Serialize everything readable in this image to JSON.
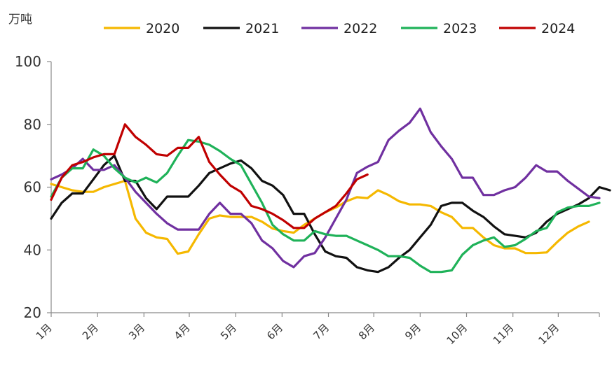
{
  "chart_data": {
    "type": "line",
    "unit_label": "万吨",
    "ylim": [
      20,
      100
    ],
    "yticks": [
      20,
      40,
      60,
      80,
      100
    ],
    "x_range": [
      0,
      52
    ],
    "month_ticks": [
      "1月",
      "2月",
      "3月",
      "4月",
      "5月",
      "6月",
      "7月",
      "8月",
      "9月",
      "10月",
      "11月",
      "12月"
    ],
    "month_tick_x": [
      0,
      4.4,
      8.8,
      13.1,
      17.5,
      21.9,
      26.3,
      30.6,
      35,
      39.4,
      43.8,
      48.1
    ],
    "legend_position": "top",
    "grid": false,
    "series": [
      {
        "name": "2020",
        "color": "#F5B800",
        "points": [
          [
            0,
            61
          ],
          [
            1,
            60
          ],
          [
            2,
            59
          ],
          [
            3,
            58.5
          ],
          [
            4,
            58.5
          ],
          [
            5,
            60
          ],
          [
            6,
            61
          ],
          [
            7,
            62
          ],
          [
            8,
            50
          ],
          [
            9,
            45.5
          ],
          [
            10,
            44
          ],
          [
            11,
            43.5
          ],
          [
            12,
            38.8
          ],
          [
            13,
            39.5
          ],
          [
            14,
            45
          ],
          [
            15,
            50
          ],
          [
            16,
            51
          ],
          [
            17,
            50.5
          ],
          [
            18,
            50.5
          ],
          [
            19,
            50.5
          ],
          [
            20,
            49
          ],
          [
            21,
            46.8
          ],
          [
            22,
            46
          ],
          [
            23,
            45.5
          ],
          [
            24,
            48
          ],
          [
            25,
            50
          ],
          [
            26,
            52
          ],
          [
            27,
            53.5
          ],
          [
            28,
            55.5
          ],
          [
            29,
            56.8
          ],
          [
            30,
            56.5
          ],
          [
            31,
            59
          ],
          [
            32,
            57.5
          ],
          [
            33,
            55.5
          ],
          [
            34,
            54.5
          ],
          [
            35,
            54.5
          ],
          [
            36,
            54
          ],
          [
            37,
            52
          ],
          [
            38,
            50.5
          ],
          [
            39,
            47
          ],
          [
            40,
            47
          ],
          [
            41,
            44
          ],
          [
            42,
            41.5
          ],
          [
            43,
            40.5
          ],
          [
            44,
            40.5
          ],
          [
            45,
            39
          ],
          [
            46,
            39
          ],
          [
            47,
            39.2
          ],
          [
            48,
            42.5
          ],
          [
            49,
            45.5
          ],
          [
            50,
            47.5
          ],
          [
            51,
            49
          ]
        ]
      },
      {
        "name": "2021",
        "color": "#111111",
        "points": [
          [
            0,
            50
          ],
          [
            1,
            55
          ],
          [
            2,
            58
          ],
          [
            3,
            58
          ],
          [
            4,
            62.5
          ],
          [
            5,
            67
          ],
          [
            6,
            70
          ],
          [
            7,
            62
          ],
          [
            8,
            62
          ],
          [
            9,
            56.5
          ],
          [
            10,
            53
          ],
          [
            11,
            57
          ],
          [
            12,
            57
          ],
          [
            13,
            57
          ],
          [
            14,
            60.5
          ],
          [
            15,
            64.5
          ],
          [
            16,
            66
          ],
          [
            17,
            67.5
          ],
          [
            18,
            68.5
          ],
          [
            19,
            66
          ],
          [
            20,
            62
          ],
          [
            21,
            60.5
          ],
          [
            22,
            57.5
          ],
          [
            23,
            51.5
          ],
          [
            24,
            51.5
          ],
          [
            25,
            45
          ],
          [
            26,
            39.5
          ],
          [
            27,
            38
          ],
          [
            28,
            37.5
          ],
          [
            29,
            34.5
          ],
          [
            30,
            33.5
          ],
          [
            31,
            33
          ],
          [
            32,
            34.5
          ],
          [
            33,
            37.5
          ],
          [
            34,
            40
          ],
          [
            35,
            44
          ],
          [
            36,
            48
          ],
          [
            37,
            54
          ],
          [
            38,
            55
          ],
          [
            39,
            55
          ],
          [
            40,
            52.5
          ],
          [
            41,
            50.5
          ],
          [
            42,
            47.5
          ],
          [
            43,
            45
          ],
          [
            44,
            44.5
          ],
          [
            45,
            44
          ],
          [
            46,
            45.5
          ],
          [
            47,
            49
          ],
          [
            48,
            51.5
          ],
          [
            49,
            53
          ],
          [
            50,
            54.5
          ],
          [
            51,
            56.5
          ],
          [
            52,
            60
          ],
          [
            53,
            59
          ]
        ]
      },
      {
        "name": "2022",
        "color": "#7030A0",
        "points": [
          [
            0,
            62.5
          ],
          [
            1,
            64
          ],
          [
            2,
            66
          ],
          [
            3,
            69
          ],
          [
            4,
            65.5
          ],
          [
            5,
            65.5
          ],
          [
            6,
            67
          ],
          [
            7,
            63
          ],
          [
            8,
            58.5
          ],
          [
            9,
            55
          ],
          [
            10,
            51.5
          ],
          [
            11,
            48.5
          ],
          [
            12,
            46.5
          ],
          [
            13,
            46.5
          ],
          [
            14,
            46.5
          ],
          [
            15,
            51.5
          ],
          [
            16,
            55
          ],
          [
            17,
            51.5
          ],
          [
            18,
            51.5
          ],
          [
            19,
            48.5
          ],
          [
            20,
            43
          ],
          [
            21,
            40.5
          ],
          [
            22,
            36.5
          ],
          [
            23,
            34.5
          ],
          [
            24,
            38
          ],
          [
            25,
            39
          ],
          [
            26,
            44
          ],
          [
            27,
            50
          ],
          [
            28,
            56
          ],
          [
            29,
            64.5
          ],
          [
            30,
            66.5
          ],
          [
            31,
            68
          ],
          [
            32,
            75
          ],
          [
            33,
            78
          ],
          [
            34,
            80.5
          ],
          [
            35,
            85
          ],
          [
            36,
            77.5
          ],
          [
            37,
            73
          ],
          [
            38,
            69
          ],
          [
            39,
            63
          ],
          [
            40,
            63
          ],
          [
            41,
            57.5
          ],
          [
            42,
            57.5
          ],
          [
            43,
            59
          ],
          [
            44,
            60
          ],
          [
            45,
            63
          ],
          [
            46,
            67
          ],
          [
            47,
            65
          ],
          [
            48,
            65
          ],
          [
            49,
            62
          ],
          [
            50,
            59.5
          ],
          [
            51,
            57
          ],
          [
            52,
            56.5
          ]
        ]
      },
      {
        "name": "2023",
        "color": "#1FB259",
        "points": [
          [
            0,
            57
          ],
          [
            1,
            63
          ],
          [
            2,
            66
          ],
          [
            3,
            66
          ],
          [
            4,
            72
          ],
          [
            5,
            70
          ],
          [
            6,
            66
          ],
          [
            7,
            63
          ],
          [
            8,
            61.5
          ],
          [
            9,
            63
          ],
          [
            10,
            61.5
          ],
          [
            11,
            64.5
          ],
          [
            12,
            70
          ],
          [
            13,
            75
          ],
          [
            14,
            74.5
          ],
          [
            15,
            73.5
          ],
          [
            16,
            71.5
          ],
          [
            17,
            69
          ],
          [
            18,
            67
          ],
          [
            19,
            61
          ],
          [
            20,
            55
          ],
          [
            21,
            48
          ],
          [
            22,
            45
          ],
          [
            23,
            43
          ],
          [
            24,
            43
          ],
          [
            25,
            46
          ],
          [
            26,
            45
          ],
          [
            27,
            44.5
          ],
          [
            28,
            44.5
          ],
          [
            29,
            43
          ],
          [
            30,
            41.5
          ],
          [
            31,
            40
          ],
          [
            32,
            38
          ],
          [
            33,
            38
          ],
          [
            34,
            37.5
          ],
          [
            35,
            35
          ],
          [
            36,
            33
          ],
          [
            37,
            33
          ],
          [
            38,
            33.5
          ],
          [
            39,
            38.5
          ],
          [
            40,
            41.5
          ],
          [
            41,
            43
          ],
          [
            42,
            44
          ],
          [
            43,
            41
          ],
          [
            44,
            41.5
          ],
          [
            45,
            43.5
          ],
          [
            46,
            46
          ],
          [
            47,
            47
          ],
          [
            48,
            52
          ],
          [
            49,
            53.5
          ],
          [
            50,
            54
          ],
          [
            51,
            54
          ],
          [
            52,
            55
          ]
        ]
      },
      {
        "name": "2024",
        "color": "#C00000",
        "points": [
          [
            0,
            56
          ],
          [
            1,
            63
          ],
          [
            2,
            67
          ],
          [
            3,
            68
          ],
          [
            4,
            69.5
          ],
          [
            5,
            70.5
          ],
          [
            6,
            70.5
          ],
          [
            7,
            80
          ],
          [
            8,
            76
          ],
          [
            9,
            73.5
          ],
          [
            10,
            70.5
          ],
          [
            11,
            70
          ],
          [
            12,
            72.5
          ],
          [
            13,
            72.5
          ],
          [
            14,
            76
          ],
          [
            15,
            68
          ],
          [
            16,
            64
          ],
          [
            17,
            60.5
          ],
          [
            18,
            58.5
          ],
          [
            19,
            54
          ],
          [
            20,
            53
          ],
          [
            21,
            51.5
          ],
          [
            22,
            49.5
          ],
          [
            23,
            47
          ],
          [
            24,
            47
          ],
          [
            25,
            50
          ],
          [
            26,
            52
          ],
          [
            27,
            54
          ],
          [
            28,
            58
          ],
          [
            29,
            62.5
          ],
          [
            30,
            64
          ]
        ]
      }
    ]
  }
}
